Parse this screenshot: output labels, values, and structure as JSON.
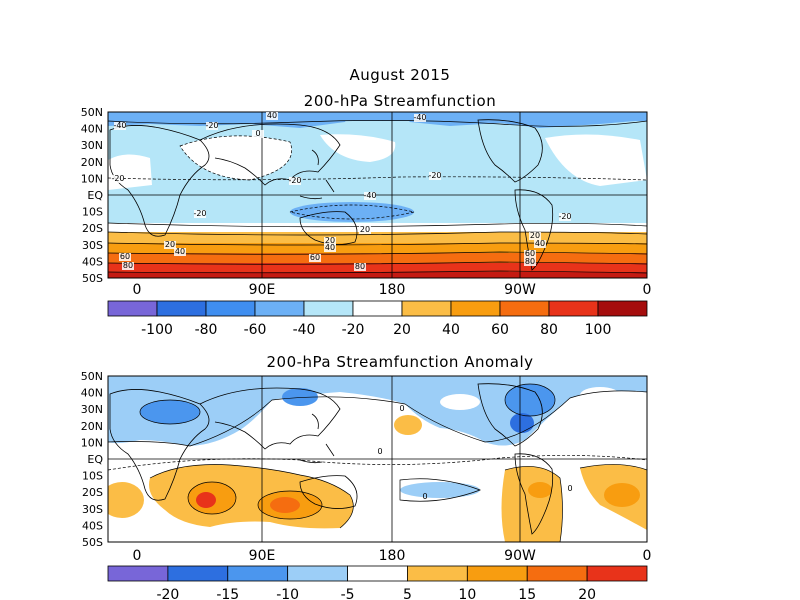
{
  "header": {
    "month_title": "August 2015",
    "map1_title": "200-hPa Streamfunction",
    "map2_title": "200-hPa Streamfunction Anomaly"
  },
  "lat_labels": [
    "50N",
    "40N",
    "30N",
    "20N",
    "10N",
    "EQ",
    "10S",
    "20S",
    "30S",
    "40S",
    "50S"
  ],
  "lon_labels": [
    "0",
    "90E",
    "180",
    "90W",
    "0"
  ],
  "colorbar1": {
    "labels": [
      "-100",
      "-80",
      "-60",
      "-40",
      "-20",
      "20",
      "40",
      "60",
      "80",
      "100"
    ],
    "colors": [
      "#7866d8",
      "#2d6fe0",
      "#3f8ef0",
      "#6cb0f5",
      "#b5e6f8",
      "#ffffff",
      "#fbbd46",
      "#f89d10",
      "#f56d10",
      "#e8331a",
      "#a50d0d"
    ]
  },
  "colorbar2": {
    "labels": [
      "-20",
      "-15",
      "-10",
      "-5",
      "5",
      "10",
      "15",
      "20"
    ],
    "colors": [
      "#7866d8",
      "#2d6fe0",
      "#4b96ee",
      "#9ccef7",
      "#ffffff",
      "#fbbd46",
      "#f89d10",
      "#f56d10",
      "#e8331a"
    ]
  },
  "map1_contour_labels": [
    "40",
    "-40",
    "-20",
    "0",
    "-40",
    "-20",
    "20",
    "40",
    "60",
    "80"
  ],
  "map2_contour_labels": [
    "0"
  ]
}
